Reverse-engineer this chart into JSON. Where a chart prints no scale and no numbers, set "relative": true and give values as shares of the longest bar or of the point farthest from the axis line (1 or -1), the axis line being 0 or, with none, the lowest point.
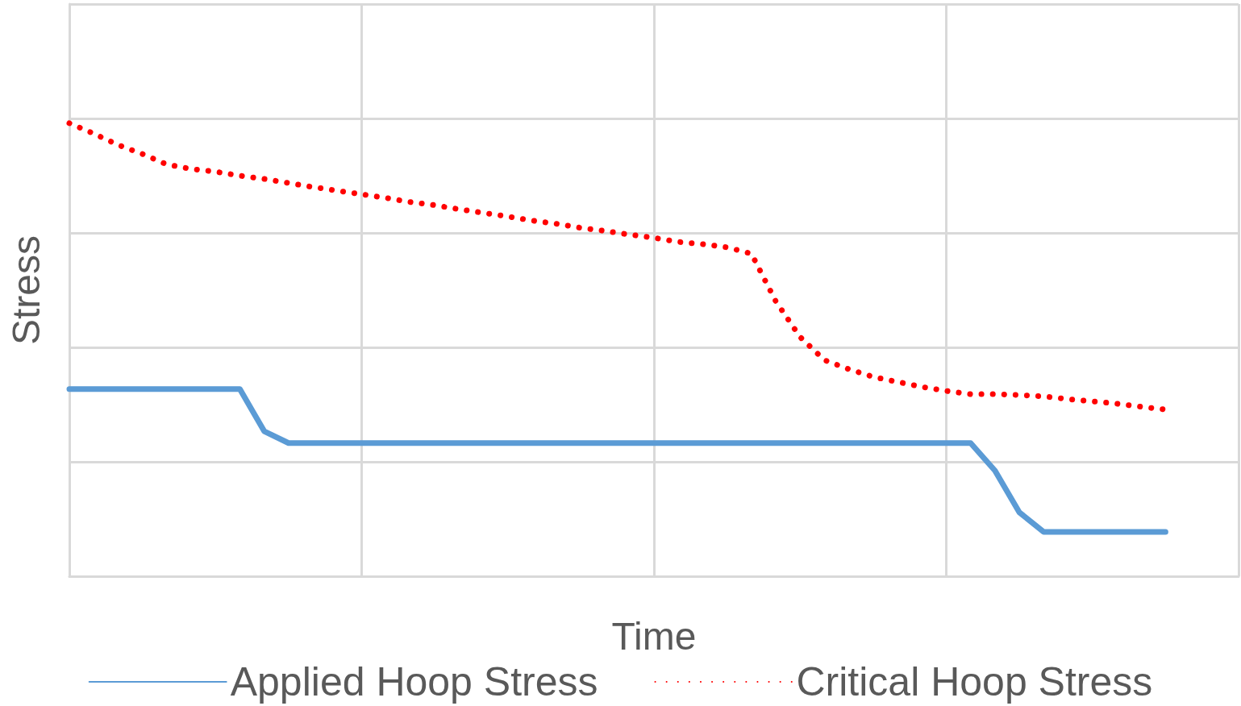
{
  "chart_data": {
    "type": "line",
    "relative": true,
    "xlabel": "Time",
    "ylabel": "Stress",
    "grid": true,
    "legend": "bottom",
    "marker": "none",
    "categories": [
      null,
      null,
      null,
      null,
      null,
      null,
      null,
      null,
      null,
      null,
      null,
      null,
      null,
      null,
      null,
      null,
      null,
      null,
      null,
      null,
      null,
      null,
      null,
      null,
      null,
      null,
      null,
      null,
      null,
      null,
      null,
      null,
      null,
      null,
      null,
      null,
      null,
      null,
      null,
      null,
      null,
      null,
      null,
      null,
      null,
      null,
      null,
      null,
      null
    ],
    "series": [
      {
        "name": "Applied Hoop Stress",
        "color": "#5b9bd5",
        "line_style": "solid",
        "values": [
          0.413,
          0.413,
          0.413,
          0.413,
          0.413,
          0.413,
          0.413,
          0.413,
          0.32,
          0.294,
          0.294,
          0.294,
          0.294,
          0.294,
          0.294,
          0.294,
          0.294,
          0.294,
          0.294,
          0.294,
          0.294,
          0.294,
          0.294,
          0.294,
          0.294,
          0.294,
          0.294,
          0.294,
          0.294,
          0.294,
          0.294,
          0.294,
          0.294,
          0.294,
          0.294,
          0.294,
          0.294,
          0.294,
          0.233,
          0.141,
          0.098,
          0.098,
          0.098,
          0.098,
          0.098,
          0.098,
          null,
          null,
          null
        ]
      },
      {
        "name": "Critical Hoop Stress",
        "color": "#ff0000",
        "line_style": "dotted",
        "values": [
          1.0,
          0.977,
          0.952,
          0.932,
          0.909,
          0.899,
          0.893,
          0.884,
          0.877,
          0.868,
          0.859,
          0.851,
          0.843,
          0.835,
          0.826,
          0.819,
          0.81,
          0.802,
          0.794,
          0.785,
          0.778,
          0.769,
          0.762,
          0.754,
          0.747,
          0.738,
          0.733,
          0.726,
          0.712,
          0.607,
          0.528,
          0.477,
          0.457,
          0.44,
          0.429,
          0.418,
          0.409,
          0.402,
          0.402,
          0.4,
          0.397,
          0.391,
          0.386,
          0.381,
          0.374,
          0.368,
          null,
          null,
          null
        ]
      }
    ]
  }
}
